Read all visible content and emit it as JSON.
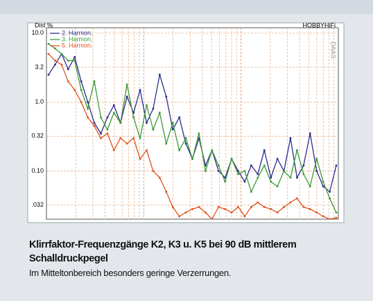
{
  "chart_data": {
    "type": "line",
    "y_label": "Dist %",
    "brand": "HOBBYHiFi",
    "software": "DAAS",
    "ylim": [
      0.02,
      12
    ],
    "log_y": true,
    "yticks": [
      {
        "value": 10,
        "label": "10.0"
      },
      3.2,
      {
        "value": 1,
        "label": "1.0"
      },
      0.32,
      {
        "value": 0.1,
        "label": "0.10"
      },
      {
        "value": 0.032,
        "label": ".032"
      }
    ],
    "grid": true,
    "series": [
      {
        "name": "2. Harmon.",
        "color": "#2b2a8c",
        "values": [
          2.5,
          3.5,
          5,
          3,
          4.5,
          2,
          1,
          0.5,
          0.35,
          0.6,
          0.9,
          0.5,
          1.2,
          0.7,
          1.5,
          0.5,
          0.8,
          2.5,
          1.2,
          0.4,
          0.6,
          0.25,
          0.15,
          0.3,
          0.12,
          0.2,
          0.1,
          0.08,
          0.15,
          0.1,
          0.07,
          0.12,
          0.09,
          0.2,
          0.08,
          0.15,
          0.1,
          0.3,
          0.08,
          0.12,
          0.35,
          0.1,
          0.06,
          0.05,
          0.12
        ]
      },
      {
        "name": "3. Harmon.",
        "color": "#3c9a3a",
        "values": [
          7,
          6,
          5,
          4,
          4,
          1.5,
          0.8,
          2,
          0.6,
          0.4,
          0.7,
          0.5,
          1.8,
          0.6,
          0.3,
          0.9,
          0.4,
          0.7,
          0.25,
          0.5,
          0.2,
          0.3,
          0.15,
          0.35,
          0.1,
          0.2,
          0.12,
          0.07,
          0.15,
          0.09,
          0.1,
          0.05,
          0.08,
          0.12,
          0.07,
          0.06,
          0.1,
          0.08,
          0.2,
          0.09,
          0.06,
          0.15,
          0.07,
          0.04,
          0.025
        ]
      },
      {
        "name": "5. Harmon.",
        "color": "#e0521c",
        "values": [
          5,
          4,
          3.5,
          2,
          1.5,
          1,
          0.6,
          0.45,
          0.3,
          0.35,
          0.2,
          0.3,
          0.25,
          0.3,
          0.15,
          0.2,
          0.1,
          0.08,
          0.05,
          0.03,
          0.022,
          0.025,
          0.028,
          0.03,
          0.025,
          0.02,
          0.03,
          0.028,
          0.025,
          0.03,
          0.022,
          0.03,
          0.035,
          0.03,
          0.028,
          0.025,
          0.03,
          0.035,
          0.04,
          0.03,
          0.028,
          0.025,
          0.022,
          0.02,
          0.021
        ]
      }
    ]
  },
  "caption": {
    "title": "Klirrfaktor-Frequenzgänge K2, K3 u. K5 bei 90 dB mittlerem Schalldruckpegel",
    "text": "Im Mitteltonbereich besonders geringe Verzerrungen."
  }
}
